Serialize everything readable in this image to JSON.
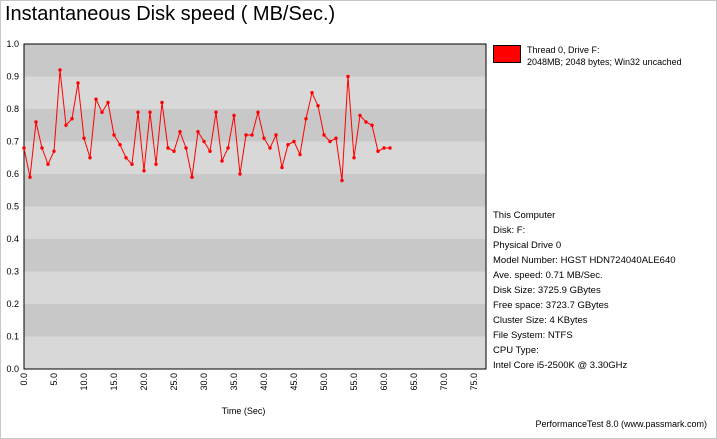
{
  "title": "Instantaneous Disk speed ( MB/Sec.)",
  "legend": {
    "line1": "Thread 0, Drive F:",
    "line2": "2048MB; 2048 bytes; Win32 uncached",
    "color": "#ff0000"
  },
  "info": [
    "This Computer",
    "Disk: F:",
    "Physical Drive 0",
    "Model Number: HGST HDN724040ALE640",
    "Ave. speed: 0.71 MB/Sec.",
    "Disk Size: 3725.9 GBytes",
    "Free space: 3723.7 GBytes",
    "Cluster Size: 4 KBytes",
    "File System: NTFS",
    "CPU Type:",
    "Intel Core i5-2500K @ 3.30GHz"
  ],
  "footer": "PerformanceTest 8.0 (www.passmark.com)",
  "chart_data": {
    "type": "line",
    "title": "Instantaneous Disk speed ( MB/Sec.)",
    "xlabel": "Time (Sec)",
    "ylabel": "",
    "xlim": [
      0,
      77
    ],
    "ylim": [
      0,
      1.0
    ],
    "x_ticks": [
      "0.0",
      "5.0",
      "10.0",
      "15.0",
      "20.0",
      "25.0",
      "30.0",
      "35.0",
      "40.0",
      "45.0",
      "50.0",
      "55.0",
      "60.0",
      "65.0",
      "70.0",
      "75.0"
    ],
    "y_ticks": [
      "0.0",
      "0.1",
      "0.2",
      "0.3",
      "0.4",
      "0.5",
      "0.6",
      "0.7",
      "0.8",
      "0.9",
      "1.0"
    ],
    "grid": "alternating horizontal bands",
    "legend_position": "top-right",
    "colors": {
      "band_dark": "#c8c8c8",
      "band_light": "#d8d8d8",
      "line": "#ff0000"
    },
    "series": [
      {
        "name": "Thread 0, Drive F:",
        "x": [
          0,
          1,
          2,
          3,
          4,
          5,
          6,
          7,
          8,
          9,
          10,
          11,
          12,
          13,
          14,
          15,
          16,
          17,
          18,
          19,
          20,
          21,
          22,
          23,
          24,
          25,
          26,
          27,
          28,
          29,
          30,
          31,
          32,
          33,
          34,
          35,
          36,
          37,
          38,
          39,
          40,
          41,
          42,
          43,
          44,
          45,
          46,
          47,
          48,
          49,
          50,
          51,
          52,
          53,
          54,
          55,
          56,
          57,
          58,
          59,
          60,
          61
        ],
        "values": [
          0.68,
          0.59,
          0.76,
          0.68,
          0.63,
          0.67,
          0.92,
          0.75,
          0.77,
          0.88,
          0.71,
          0.65,
          0.83,
          0.79,
          0.82,
          0.72,
          0.69,
          0.65,
          0.63,
          0.79,
          0.61,
          0.79,
          0.63,
          0.82,
          0.68,
          0.67,
          0.73,
          0.68,
          0.59,
          0.73,
          0.7,
          0.67,
          0.79,
          0.64,
          0.68,
          0.78,
          0.6,
          0.72,
          0.72,
          0.79,
          0.71,
          0.68,
          0.72,
          0.62,
          0.69,
          0.7,
          0.66,
          0.77,
          0.85,
          0.81,
          0.72,
          0.7,
          0.71,
          0.58,
          0.9,
          0.65,
          0.78,
          0.76,
          0.75,
          0.67,
          0.68,
          0.68
        ]
      }
    ]
  }
}
